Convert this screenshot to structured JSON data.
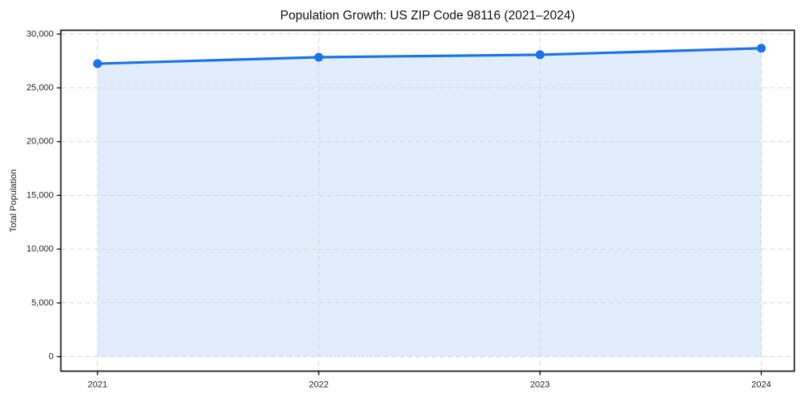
{
  "figure": {
    "title": "Population Growth: US ZIP Code 98116 (2021–2024)"
  },
  "chart_data": {
    "type": "line",
    "title": "Population Growth: US ZIP Code 98116 (2021–2024)",
    "x": [
      "2021",
      "2022",
      "2023",
      "2024"
    ],
    "series": [
      {
        "name": "Total Population",
        "values": [
          27250,
          27850,
          28080,
          28680
        ]
      }
    ],
    "xlabel": "",
    "ylabel": "Total Population",
    "ylim": [
      0,
      30000
    ],
    "yticks": [
      0,
      5000,
      10000,
      15000,
      20000,
      25000,
      30000
    ],
    "ytick_labels": [
      "0",
      "5,000",
      "10,000",
      "15,000",
      "20,000",
      "25,000",
      "30,000"
    ],
    "xtick_labels": [
      "2021",
      "2022",
      "2023",
      "2024"
    ],
    "grid": true,
    "grid_style": "dashed",
    "legend": "none",
    "marker": "circle",
    "area_fill": true,
    "colors": {
      "line": "#1a73e8",
      "marker": "#1a73e8",
      "area": "rgba(26,115,232,0.13)",
      "grid": "#d6d6d6",
      "spine": "#1a1a1a",
      "text": "#242424",
      "background": "#ffffff"
    }
  }
}
